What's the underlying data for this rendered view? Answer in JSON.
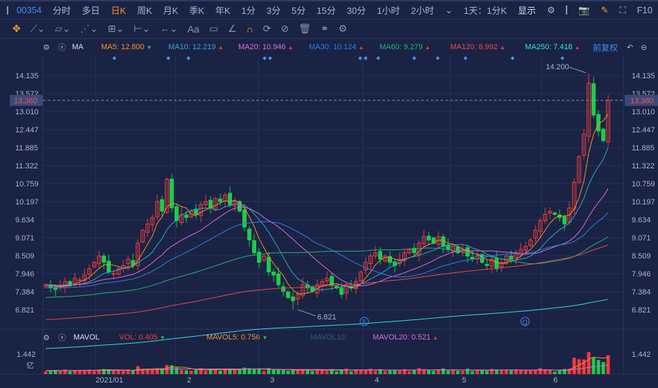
{
  "toolbar": {
    "code": "00354",
    "periods": [
      "分时",
      "多日",
      "日K",
      "周K",
      "月K",
      "季K",
      "年K",
      "1分",
      "3分",
      "5分",
      "15分",
      "30分",
      "1小时",
      "2小时"
    ],
    "active": "日K",
    "range": "1天：1分K",
    "display": "显示",
    "f10": "F10"
  },
  "draw_tools": [
    "move",
    "line",
    "polyline",
    "wave",
    "fib",
    "measure",
    "arrow",
    "text",
    "comment",
    "angle",
    "magnet",
    "sync",
    "hide",
    "delete",
    "compare",
    "settings"
  ],
  "ma_legend": {
    "name": "MA",
    "items": [
      {
        "label": "MA5: 12.800",
        "dir": "down",
        "color": "#f5922a"
      },
      {
        "label": "MA10: 12.219",
        "dir": "up",
        "color": "#2fa9d8"
      },
      {
        "label": "MA20: 10.946",
        "dir": "up",
        "color": "#e06ad8"
      },
      {
        "label": "MA30: 10.124",
        "dir": "up",
        "color": "#2f7fe8"
      },
      {
        "label": "MA60: 9.279",
        "dir": "up",
        "color": "#22b573"
      },
      {
        "label": "MA120: 8.992",
        "dir": "up",
        "color": "#e84a4a"
      },
      {
        "label": "MA250: 7.418",
        "dir": "up",
        "color": "#35e0e0"
      }
    ],
    "adjust": "前复权"
  },
  "vol_legend": {
    "name": "MAVOL",
    "vol": "VOL: 0.405",
    "mavol5": "MAVOL5: 0.756",
    "mavol10": "MAVOL10:",
    "mavol20": "MAVOL20: 0.521"
  },
  "chart_data": {
    "type": "candlestick",
    "y_ticks": [
      "14.135",
      "13.572",
      "13.010",
      "12.447",
      "11.885",
      "11.322",
      "10.759",
      "10.197",
      "9.634",
      "9.071",
      "8.509",
      "7.946",
      "7.384",
      "6.821"
    ],
    "ylim": [
      6.821,
      14.135
    ],
    "current_price": "13.360",
    "high_label": "14.200",
    "low_label": "6.821",
    "x_labels": [
      "2021/01",
      "2",
      "3",
      "4",
      "5",
      "6"
    ],
    "vol_tick": "1.442",
    "vol_unit": "亿",
    "event_markers": [
      "E",
      "Q"
    ],
    "closes": [
      7.6,
      7.5,
      7.45,
      7.55,
      7.7,
      7.6,
      7.8,
      7.75,
      7.9,
      8.1,
      8.3,
      8.5,
      8.3,
      8.0,
      7.95,
      8.1,
      8.2,
      8.4,
      8.2,
      8.9,
      9.3,
      9.5,
      9.7,
      10.2,
      9.9,
      10.9,
      10.0,
      9.6,
      9.8,
      9.7,
      9.9,
      9.8,
      10.1,
      10.2,
      10.0,
      10.3,
      10.2,
      10.4,
      10.1,
      10.2,
      9.9,
      9.4,
      9.0,
      8.6,
      8.3,
      8.5,
      8.0,
      7.9,
      7.6,
      7.4,
      7.2,
      7.1,
      7.3,
      7.6,
      7.5,
      7.4,
      7.6,
      7.7,
      7.8,
      7.6,
      7.5,
      7.3,
      7.6,
      7.5,
      7.7,
      8.0,
      8.3,
      8.5,
      8.6,
      8.4,
      8.5,
      8.3,
      8.2,
      8.4,
      8.6,
      8.7,
      8.6,
      8.9,
      9.1,
      9.0,
      8.9,
      9.1,
      8.8,
      8.7,
      8.8,
      8.6,
      8.7,
      8.5,
      8.4,
      8.5,
      8.3,
      8.2,
      8.4,
      8.1,
      8.3,
      8.5,
      8.4,
      8.6,
      8.7,
      8.8,
      9.0,
      9.3,
      9.6,
      9.8,
      9.9,
      9.8,
      9.7,
      9.5,
      10.0,
      10.8,
      11.6,
      12.3,
      13.9,
      12.9,
      12.4,
      12.1,
      13.36
    ]
  }
}
